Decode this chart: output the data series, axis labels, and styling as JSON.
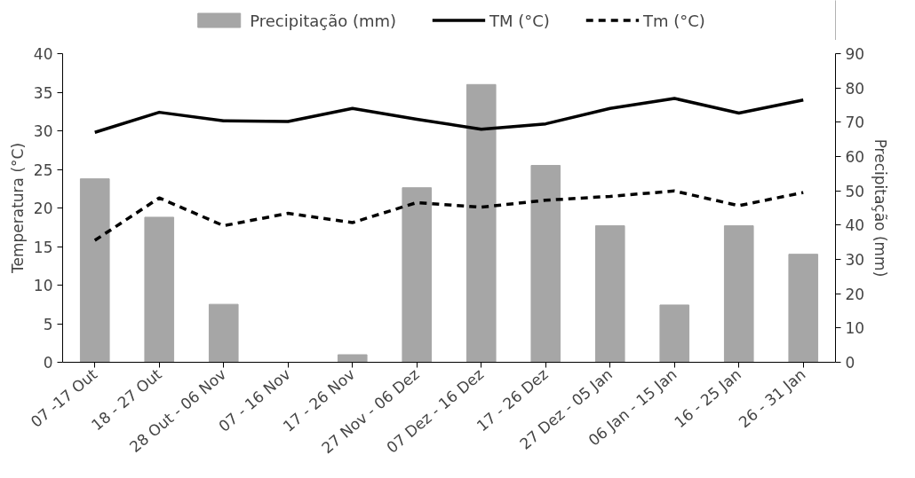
{
  "chart_data": {
    "type": "bar",
    "ylabel": "Temperatura (°C)",
    "y2label": "Precipitação (mm)",
    "categories": [
      "07 -17 Out",
      "18 - 27 Out",
      "28 Out - 06 Nov",
      "07 - 16 Nov",
      "17 - 26 Nov",
      "27 Nov - 06 Dez",
      "07 Dez - 16 Dez",
      "17 - 26 Dez",
      "27 Dez - 05 Jan",
      "06 Jan - 15 Jan",
      "16 - 25 Jan",
      "26 - 31 Jan"
    ],
    "series": [
      {
        "name": "Precipitação (mm)",
        "type": "bar",
        "axis": "y2",
        "color": "#a6a6a6",
        "values": [
          53.5,
          42.3,
          16.9,
          0,
          2.2,
          50.9,
          81,
          57.4,
          39.8,
          16.7,
          39.8,
          31.5
        ]
      },
      {
        "name": "TM (°C)",
        "type": "line",
        "line_style": "solid",
        "color": "#000000",
        "values": [
          29.8,
          32.4,
          31.3,
          31.2,
          32.9,
          31.5,
          30.2,
          30.9,
          32.9,
          34.2,
          32.3,
          34.0
        ]
      },
      {
        "name": "Tm (°C)",
        "type": "line",
        "line_style": "dashed",
        "color": "#000000",
        "values": [
          15.8,
          21.3,
          17.7,
          19.3,
          18.1,
          20.7,
          20.1,
          21.0,
          21.5,
          22.2,
          20.3,
          22.0
        ]
      }
    ],
    "ylim": [
      0,
      40
    ],
    "yticks": [
      0,
      5,
      10,
      15,
      20,
      25,
      30,
      35,
      40
    ],
    "y2lim": [
      0,
      90
    ],
    "y2ticks": [
      0,
      10,
      20,
      30,
      40,
      50,
      60,
      70,
      80,
      90
    ],
    "legend": "top"
  }
}
